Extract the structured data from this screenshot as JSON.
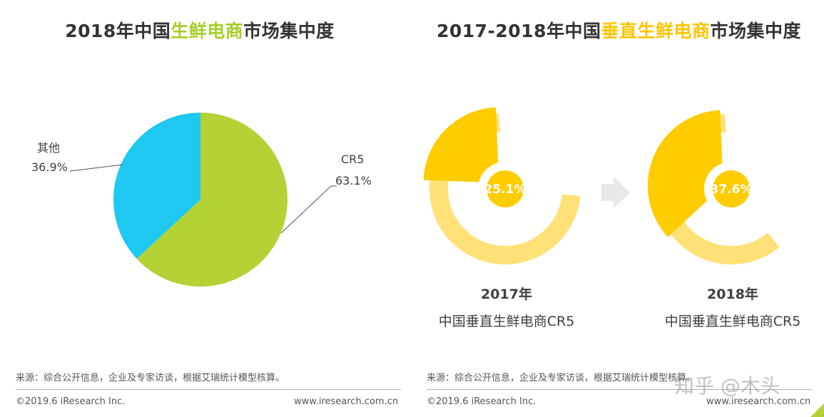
{
  "titles": {
    "left": {
      "prefix": "2018年中国",
      "highlight": "生鲜电商",
      "suffix": "市场集中度"
    },
    "right": {
      "prefix": "2017-2018年中国",
      "highlight": "垂直生鲜电商",
      "suffix": "市场集中度"
    }
  },
  "colors": {
    "cr5_green": "#b2d235",
    "other_blue": "#1ec8f0",
    "donut_dark": "#ffcc00",
    "donut_light": "#ffe178",
    "arrow_gray": "#e8e8e8",
    "title_green": "#a6cf2a",
    "title_yellow": "#ffc400"
  },
  "chart_data": [
    {
      "type": "pie",
      "title": "2018年中国生鲜电商市场集中度",
      "slices": [
        {
          "label": "CR5",
          "value": 63.1,
          "value_label": "63.1%"
        },
        {
          "label": "其他",
          "value": 36.9,
          "value_label": "36.9%"
        }
      ]
    },
    {
      "type": "pie",
      "title": "2017-2018年中国垂直生鲜电商市场集中度",
      "donuts": [
        {
          "year": "2017年",
          "category": "中国垂直生鲜电商CR5",
          "value": 25.1,
          "value_label": "25.1%"
        },
        {
          "year": "2018年",
          "category": "中国垂直生鲜电商CR5",
          "value": 37.6,
          "value_label": "37.6%"
        }
      ]
    }
  ],
  "footer": {
    "left": {
      "source": "来源：综合公开信息，企业及专家访谈，根据艾瑞统计模型核算。",
      "copyright": "©2019.6 iResearch Inc.",
      "url": "www.iresearch.com.cn"
    },
    "right": {
      "source": "来源：综合公开信息，企业及专家访谈，根据艾瑞统计模型核算。",
      "copyright": "©2019.6 iResearch Inc.",
      "url": "www.iresearch.com.cn"
    }
  },
  "watermark": "知乎 @木头"
}
